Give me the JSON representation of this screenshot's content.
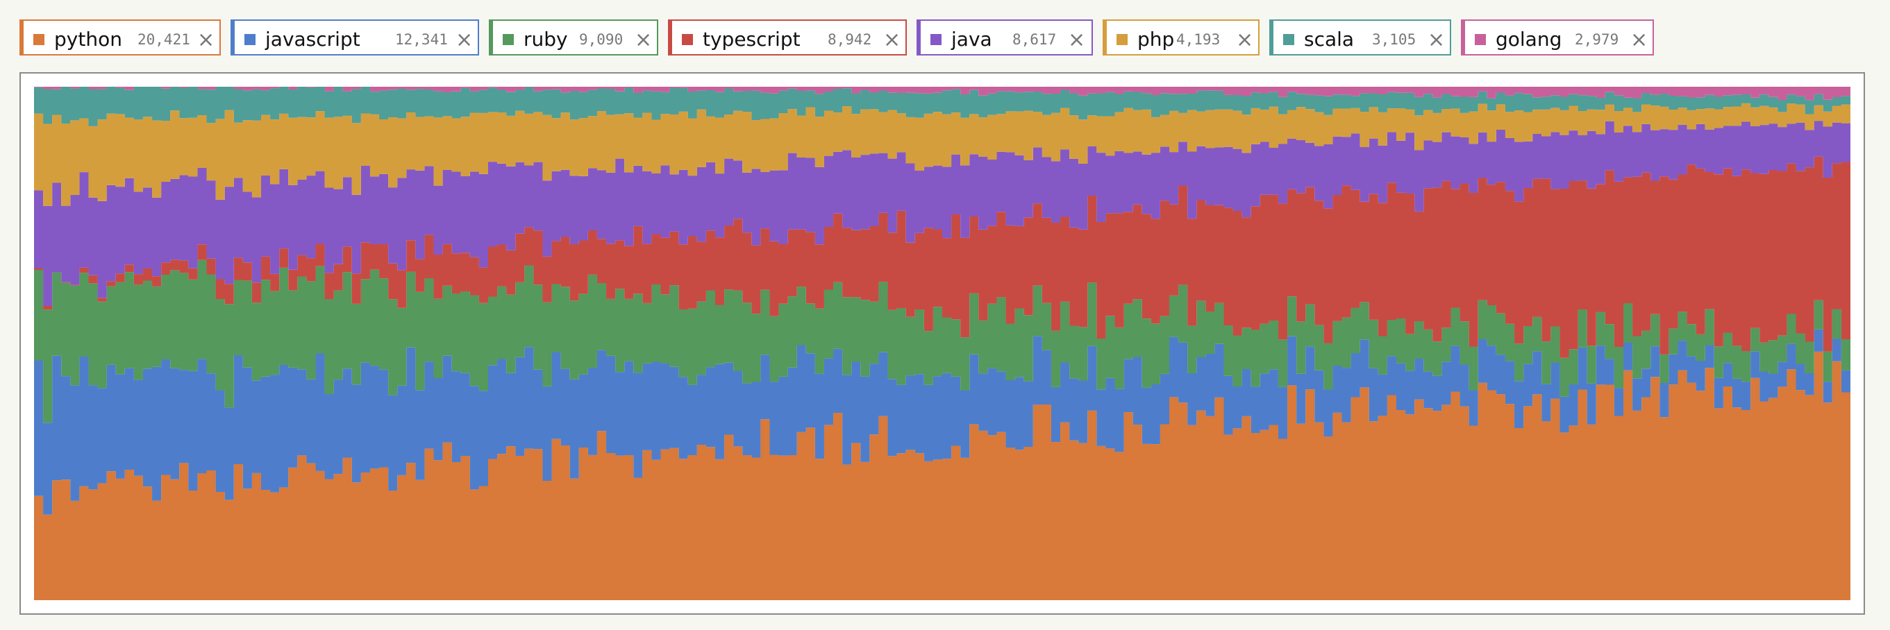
{
  "legend": [
    {
      "name": "python",
      "count": "20,421",
      "color": "#d9793a"
    },
    {
      "name": "javascript",
      "count": "12,341",
      "color": "#4e7ecb"
    },
    {
      "name": "ruby",
      "count": "9,090",
      "color": "#55995c"
    },
    {
      "name": "typescript",
      "count": "8,942",
      "color": "#c84b43"
    },
    {
      "name": "java",
      "count": "8,617",
      "color": "#8459c6"
    },
    {
      "name": "php",
      "count": "4,193",
      "color": "#d59e3d"
    },
    {
      "name": "scala",
      "count": "3,105",
      "color": "#4f9e98"
    },
    {
      "name": "golang",
      "count": "2,979",
      "color": "#c8619b"
    }
  ],
  "close_glyph": "×",
  "chart_data": {
    "type": "area",
    "stacking": "normalized",
    "title": "",
    "xlabel": "",
    "ylabel": "",
    "ylim": [
      0,
      1
    ],
    "grid": false,
    "legend_position": "top",
    "x_count": 200,
    "series": [
      {
        "name": "python",
        "color": "#d9793a",
        "start": 0.21,
        "end": 0.43,
        "seed": 1
      },
      {
        "name": "javascript",
        "color": "#4e7ecb",
        "start": 0.23,
        "end": 0.04,
        "seed": 2
      },
      {
        "name": "ruby",
        "color": "#55995c",
        "start": 0.19,
        "end": 0.05,
        "seed": 3
      },
      {
        "name": "typescript",
        "color": "#c84b43",
        "start": 0.0,
        "end": 0.33,
        "seed": 4
      },
      {
        "name": "java",
        "color": "#8459c6",
        "start": 0.17,
        "end": 0.08,
        "seed": 5
      },
      {
        "name": "php",
        "color": "#d59e3d",
        "start": 0.14,
        "end": 0.03,
        "seed": 6
      },
      {
        "name": "scala",
        "color": "#4f9e98",
        "start": 0.06,
        "end": 0.02,
        "seed": 7
      },
      {
        "name": "golang",
        "color": "#c8619b",
        "start": 0.0,
        "end": 0.02,
        "seed": 8
      }
    ]
  }
}
